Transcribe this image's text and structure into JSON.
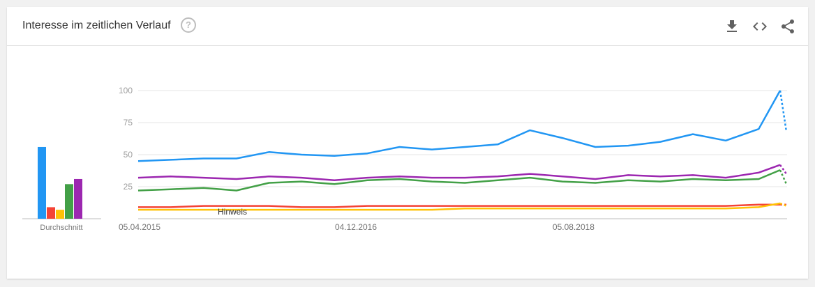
{
  "header": {
    "title": "Interesse im zeitlichen Verlauf",
    "help_icon": "help-circle-icon",
    "actions": [
      "download-icon",
      "embed-code-icon",
      "share-icon"
    ]
  },
  "colors": {
    "blue": "#4285f4",
    "red": "#ea4335",
    "yellow": "#fbbc04",
    "green": "#34a853",
    "purple": "#9c27b0"
  },
  "chart_data": [
    {
      "type": "bar",
      "xlabel": "Durchschnitt",
      "values": [
        56,
        9,
        7,
        27,
        31
      ],
      "colors": [
        "#2196f3",
        "#f44336",
        "#ffc107",
        "#43a047",
        "#9c27b0"
      ],
      "ylim": [
        0,
        100
      ]
    },
    {
      "type": "line",
      "x": [
        "2015-04-05",
        "2015-07-05",
        "2015-10-05",
        "2016-01-05",
        "2016-04-05",
        "2016-07-05",
        "2016-10-05",
        "2017-01-05",
        "2017-04-05",
        "2017-07-05",
        "2017-10-05",
        "2018-01-05",
        "2018-04-05",
        "2018-07-05",
        "2018-10-05",
        "2019-01-05",
        "2019-04-05",
        "2019-07-05",
        "2019-10-05",
        "2020-01-05",
        "2020-03-05"
      ],
      "series": [
        {
          "color": "#2196f3",
          "values": [
            45,
            46,
            47,
            47,
            52,
            50,
            49,
            51,
            56,
            54,
            56,
            58,
            69,
            63,
            56,
            57,
            60,
            66,
            61,
            70,
            100
          ],
          "partial_last": 68
        },
        {
          "color": "#9c27b0",
          "values": [
            32,
            33,
            32,
            31,
            33,
            32,
            30,
            32,
            33,
            32,
            32,
            33,
            35,
            33,
            31,
            34,
            33,
            34,
            32,
            36,
            42
          ],
          "partial_last": 35
        },
        {
          "color": "#43a047",
          "values": [
            22,
            23,
            24,
            22,
            28,
            29,
            27,
            30,
            31,
            29,
            28,
            30,
            32,
            29,
            28,
            30,
            29,
            31,
            30,
            31,
            38
          ],
          "partial_last": 27
        },
        {
          "color": "#f44336",
          "values": [
            9,
            9,
            10,
            10,
            10,
            9,
            9,
            10,
            10,
            10,
            10,
            10,
            10,
            10,
            10,
            10,
            10,
            10,
            10,
            11,
            11
          ],
          "partial_last": 11
        },
        {
          "color": "#ffc107",
          "values": [
            7,
            7,
            7,
            7,
            7,
            7,
            7,
            7,
            7,
            7,
            8,
            8,
            8,
            8,
            8,
            8,
            8,
            8,
            8,
            9,
            12
          ],
          "partial_last": 10
        }
      ],
      "yticks": [
        25,
        50,
        75,
        100
      ],
      "xtick_labels": [
        "05.04.2015",
        "04.12.2016",
        "05.08.2018"
      ],
      "annotation": "Hinweis",
      "ylim": [
        0,
        100
      ]
    }
  ]
}
